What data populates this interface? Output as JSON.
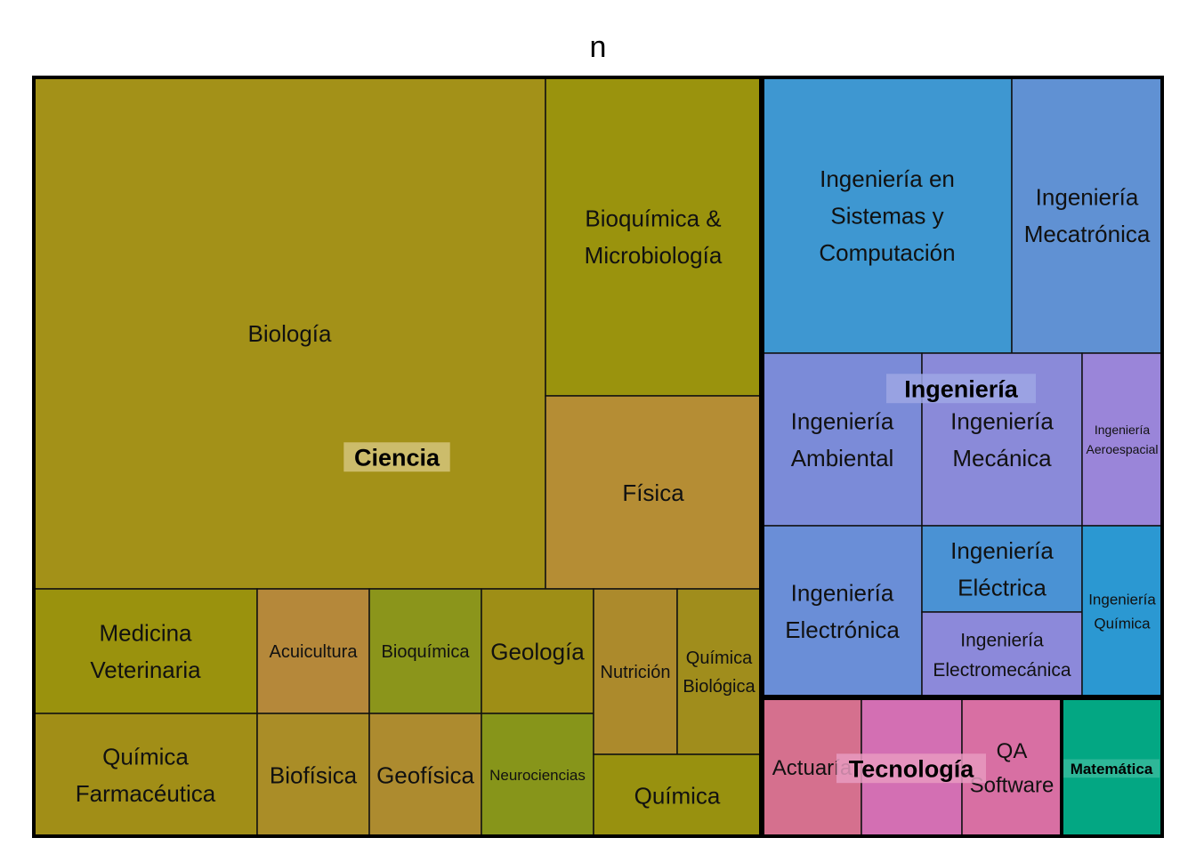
{
  "chart_data": {
    "type": "treemap",
    "title": "n",
    "groups": [
      {
        "name": "Ciencia",
        "items": [
          {
            "name": "Biología",
            "color": "#A39118"
          },
          {
            "name": "Bioquímica & Microbiología",
            "color": "#9A930D"
          },
          {
            "name": "Física",
            "color": "#B58D34"
          },
          {
            "name": "Medicina Veterinaria",
            "color": "#9A920D"
          },
          {
            "name": "Química Farmacéutica",
            "color": "#A18E17"
          },
          {
            "name": "Acuicultura",
            "color": "#B5883A"
          },
          {
            "name": "Biofísica",
            "color": "#AA8D27"
          },
          {
            "name": "Bioquímica",
            "color": "#8B951B"
          },
          {
            "name": "Geofísica",
            "color": "#AD8B2F"
          },
          {
            "name": "Geología",
            "color": "#9E8E16"
          },
          {
            "name": "Neurociencias",
            "color": "#87951A"
          },
          {
            "name": "Nutrición",
            "color": "#AC8A2C"
          },
          {
            "name": "Química Biológica",
            "color": "#A08D1C"
          },
          {
            "name": "Química",
            "color": "#98910F"
          }
        ]
      },
      {
        "name": "Ingeniería",
        "items": [
          {
            "name": "Ingeniería en Sistemas y Computación",
            "color": "#3E97D1"
          },
          {
            "name": "Ingeniería Mecatrónica",
            "color": "#6091D3"
          },
          {
            "name": "Ingeniería Ambiental",
            "color": "#7B8BD8"
          },
          {
            "name": "Ingeniería Mecánica",
            "color": "#8A8AD9"
          },
          {
            "name": "Ingeniería Aeroespacial",
            "color": "#9A85D9"
          },
          {
            "name": "Ingeniería Electrónica",
            "color": "#6A8ED7"
          },
          {
            "name": "Ingeniería Eléctrica",
            "color": "#4A92D4"
          },
          {
            "name": "Ingeniería Electromecánica",
            "color": "#8C89DA"
          },
          {
            "name": "Ingeniería Química",
            "color": "#2B98D2"
          }
        ]
      },
      {
        "name": "Tecnología",
        "items": [
          {
            "name": "Actuaría",
            "color": "#D5708E"
          },
          {
            "name": "Tecnología",
            "color": "#D36FB3"
          },
          {
            "name": "QA Software",
            "color": "#D86FA3"
          }
        ]
      },
      {
        "name": "Matemática",
        "items": [
          {
            "name": "Matemática",
            "color": "#03A783"
          }
        ]
      }
    ]
  }
}
